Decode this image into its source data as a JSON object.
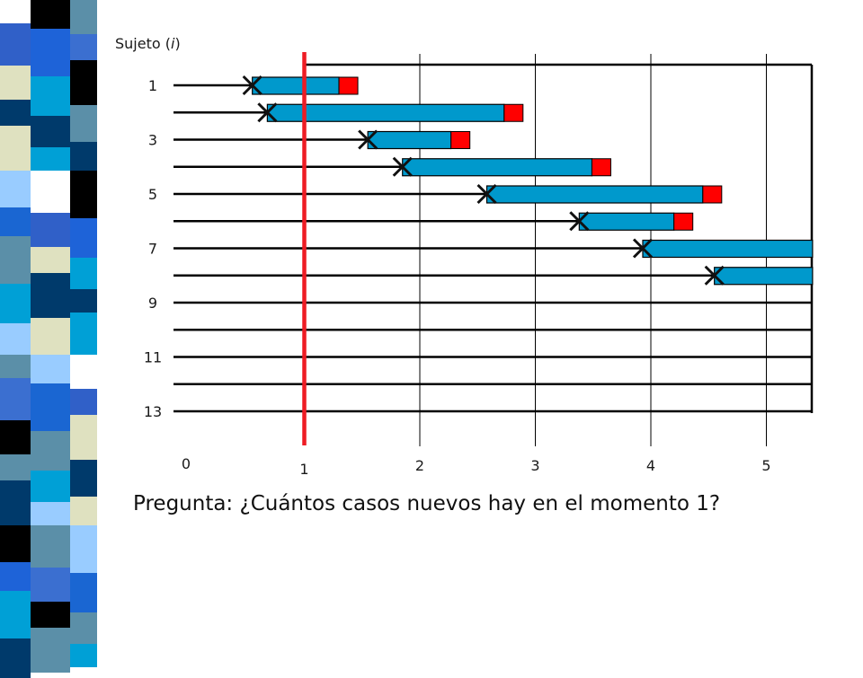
{
  "diagram": {
    "subject_axis_title_prefix": "Sujeto (",
    "subject_axis_title_var": "i",
    "subject_axis_title_suffix": ")",
    "subject_tick_labels": [
      "1",
      "3",
      "5",
      "7",
      "9",
      "11",
      "13"
    ],
    "time_tick_labels": [
      "0",
      "1",
      "2",
      "3",
      "4",
      "5"
    ],
    "highlighted_time": 1,
    "colors": {
      "follow_up_bar": "#0099cc",
      "event_box": "#ff0000",
      "marker_line": "#ee1c24",
      "grid_line": "#000000",
      "entry_mark": "#111111"
    },
    "subjects": [
      {
        "id": 1,
        "entry": 0.55,
        "end": 1.3,
        "event": true
      },
      {
        "id": 2,
        "entry": 0.68,
        "end": 2.73,
        "event": true
      },
      {
        "id": 3,
        "entry": 1.55,
        "end": 2.27,
        "event": true
      },
      {
        "id": 4,
        "entry": 1.85,
        "end": 3.49,
        "event": true
      },
      {
        "id": 5,
        "entry": 2.58,
        "end": 4.45,
        "event": true
      },
      {
        "id": 6,
        "entry": 3.38,
        "end": 4.2,
        "event": true
      },
      {
        "id": 7,
        "entry": 3.93,
        "end": 5.4,
        "event": false
      },
      {
        "id": 8,
        "entry": 4.55,
        "end": 5.4,
        "event": false
      },
      {
        "id": 9,
        "entry": null,
        "end": null,
        "event": false
      },
      {
        "id": 10,
        "entry": null,
        "end": null,
        "event": false
      },
      {
        "id": 11,
        "entry": null,
        "end": null,
        "event": false
      },
      {
        "id": 12,
        "entry": null,
        "end": null,
        "event": false
      },
      {
        "id": 13,
        "entry": null,
        "end": null,
        "event": false
      }
    ]
  },
  "question": "Pregunta: ¿Cuántos casos nuevos hay en el momento 1?"
}
